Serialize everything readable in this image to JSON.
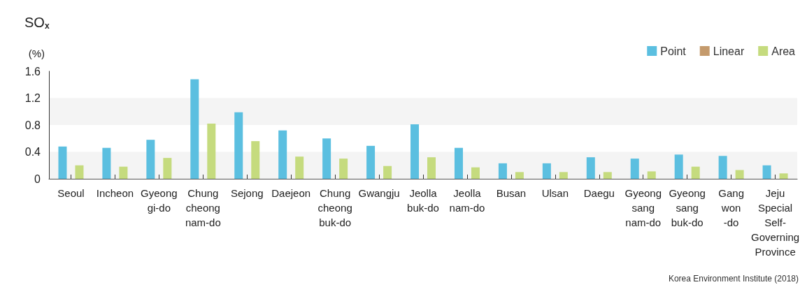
{
  "chart_data": {
    "type": "bar",
    "title": "SO$_{x}$",
    "ylabel": "(%)",
    "categories": [
      "Seoul",
      "Incheon",
      "Gyeong\ngi-do",
      "Chung\ncheong\nnam-do",
      "Sejong",
      "Daejeon",
      "Chung\ncheong\nbuk-do",
      "Gwangju",
      "Jeolla\nbuk-do",
      "Jeolla\nnam-do",
      "Busan",
      "Ulsan",
      "Daegu",
      "Gyeong\nsang\nnam-do",
      "Gyeong\nsang\nbuk-do",
      "Gang\nwon\n-do",
      "Jeju\nSpecial\nSelf-\nGoverning\nProvince"
    ],
    "series": [
      {
        "name": "Point",
        "color": "#5bbfe0",
        "values": [
          0.48,
          0.46,
          0.58,
          1.48,
          0.99,
          0.72,
          0.6,
          0.49,
          0.81,
          0.46,
          0.23,
          0.23,
          0.32,
          0.3,
          0.36,
          0.34,
          0.2
        ]
      },
      {
        "name": "Linear",
        "color": "#c49a6c",
        "values": [
          0,
          0,
          0,
          0,
          0,
          0,
          0,
          0,
          0,
          0,
          0,
          0,
          0,
          0,
          0,
          0,
          0
        ]
      },
      {
        "name": "Area",
        "color": "#c5db7e",
        "values": [
          0.2,
          0.18,
          0.31,
          0.82,
          0.56,
          0.33,
          0.3,
          0.19,
          0.32,
          0.17,
          0.1,
          0.1,
          0.1,
          0.11,
          0.18,
          0.13,
          0.08
        ]
      }
    ],
    "ylim": [
      0,
      1.6
    ],
    "yticks": [
      0,
      0.4,
      0.8,
      1.2,
      1.6
    ],
    "bands": [
      {
        "axis": "y",
        "from": 0,
        "to": 0.4,
        "color": "#f4f4f4"
      },
      {
        "axis": "y",
        "from": 0.8,
        "to": 1.2,
        "color": "#f4f4f4"
      }
    ],
    "legend": "top right",
    "annotations": [
      "Korea Environment Institute (2018)"
    ]
  }
}
